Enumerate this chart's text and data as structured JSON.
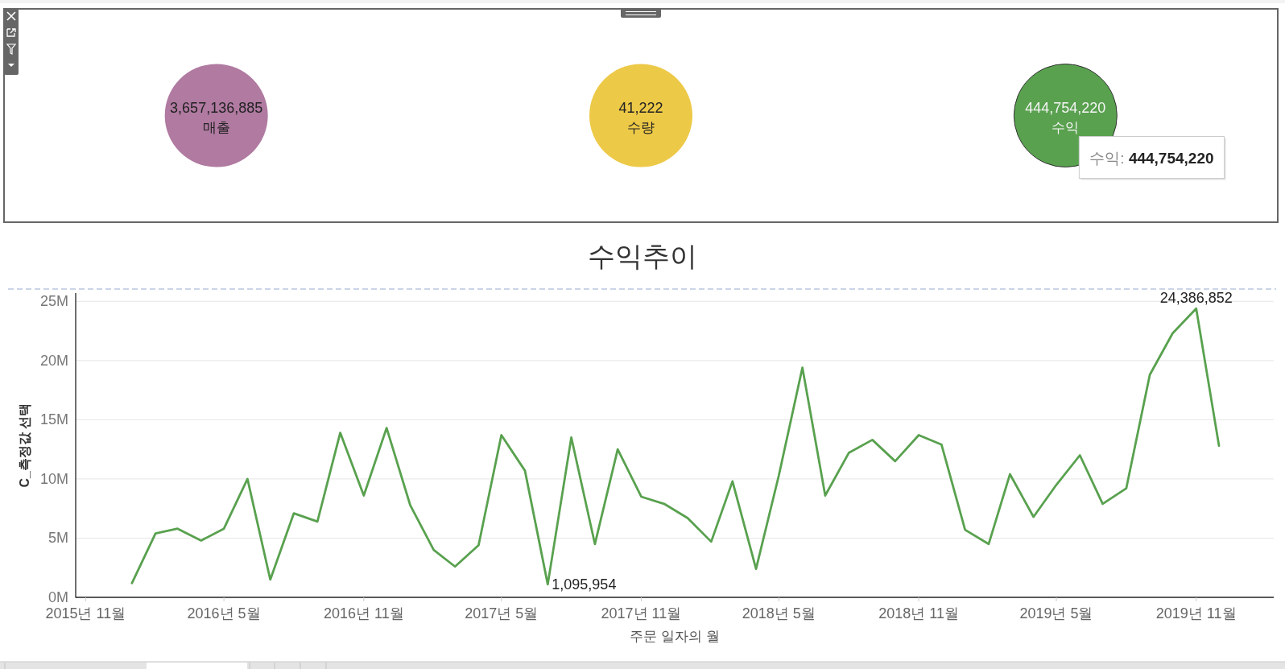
{
  "chart_data": [
    {
      "type": "other",
      "categories": [
        "매출",
        "수량",
        "수익"
      ],
      "values": [
        3657136885,
        41222,
        444754220
      ],
      "value_labels": [
        "3,657,136,885",
        "41,222",
        "444,754,220"
      ],
      "colors": [
        "#b07aa1",
        "#edc948",
        "#59a14f"
      ],
      "annotations": [
        {
          "text": "수익: 444,754,220",
          "x": "수익"
        }
      ]
    },
    {
      "type": "line",
      "title": "수익추이",
      "xlabel": "주문 일자의 월",
      "ylabel": "C_측정값 선택",
      "x": [
        "2016-01",
        "2016-02",
        "2016-03",
        "2016-04",
        "2016-05",
        "2016-06",
        "2016-07",
        "2016-08",
        "2016-09",
        "2016-10",
        "2016-11",
        "2016-12",
        "2017-01",
        "2017-02",
        "2017-03",
        "2017-04",
        "2017-05",
        "2017-06",
        "2017-07",
        "2017-08",
        "2017-09",
        "2017-10",
        "2017-11",
        "2017-12",
        "2018-01",
        "2018-02",
        "2018-03",
        "2018-04",
        "2018-05",
        "2018-06",
        "2018-07",
        "2018-08",
        "2018-09",
        "2018-10",
        "2018-11",
        "2018-12",
        "2019-01",
        "2019-02",
        "2019-03",
        "2019-04",
        "2019-05",
        "2019-06",
        "2019-07",
        "2019-08",
        "2019-09",
        "2019-10",
        "2019-11",
        "2019-12"
      ],
      "series": [
        {
          "color": "#59a14f",
          "values": [
            1200000,
            5400000,
            5800000,
            4800000,
            5800000,
            10000000,
            1500000,
            7100000,
            6400000,
            13900000,
            8600000,
            14300000,
            7800000,
            4000000,
            2600000,
            4400000,
            13700000,
            10700000,
            1095954,
            13500000,
            4500000,
            12500000,
            8500000,
            7900000,
            6700000,
            4700000,
            9800000,
            2400000,
            10300000,
            19400000,
            8600000,
            12200000,
            13300000,
            11500000,
            13700000,
            12900000,
            5700000,
            4500000,
            10400000,
            6800000,
            9500000,
            12000000,
            7900000,
            9200000,
            18800000,
            22300000,
            24386852,
            12800000
          ],
          "value_labels": [
            null,
            null,
            null,
            null,
            null,
            null,
            null,
            null,
            null,
            null,
            null,
            null,
            null,
            null,
            null,
            null,
            null,
            null,
            "1,095,954",
            null,
            null,
            null,
            null,
            null,
            null,
            null,
            null,
            null,
            null,
            null,
            null,
            null,
            null,
            null,
            null,
            null,
            null,
            null,
            null,
            null,
            null,
            null,
            null,
            null,
            null,
            null,
            "24,386,852",
            null
          ]
        }
      ],
      "xlim": [
        "2015-10-19",
        "2020-02-11"
      ],
      "xticks": [
        {
          "value": "2015-11",
          "label": "2015년 11월"
        },
        {
          "value": "2016-05",
          "label": "2016년 5월"
        },
        {
          "value": "2016-11",
          "label": "2016년 11월"
        },
        {
          "value": "2017-05",
          "label": "2017년 5월"
        },
        {
          "value": "2017-11",
          "label": "2017년 11월"
        },
        {
          "value": "2018-05",
          "label": "2018년 5월"
        },
        {
          "value": "2018-11",
          "label": "2018년 11월"
        },
        {
          "value": "2019-05",
          "label": "2019년 5월"
        },
        {
          "value": "2019-11",
          "label": "2019년 11월"
        }
      ],
      "ylim": [
        0,
        25700000
      ],
      "yticks": [
        {
          "value": 0,
          "label": "0M"
        },
        {
          "value": 5000000,
          "label": "5M"
        },
        {
          "value": 10000000,
          "label": "10M"
        },
        {
          "value": 15000000,
          "label": "15M"
        },
        {
          "value": 20000000,
          "label": "20M"
        },
        {
          "value": 25000000,
          "label": "25M"
        }
      ],
      "grid": "y",
      "line_style": "solid"
    }
  ]
}
